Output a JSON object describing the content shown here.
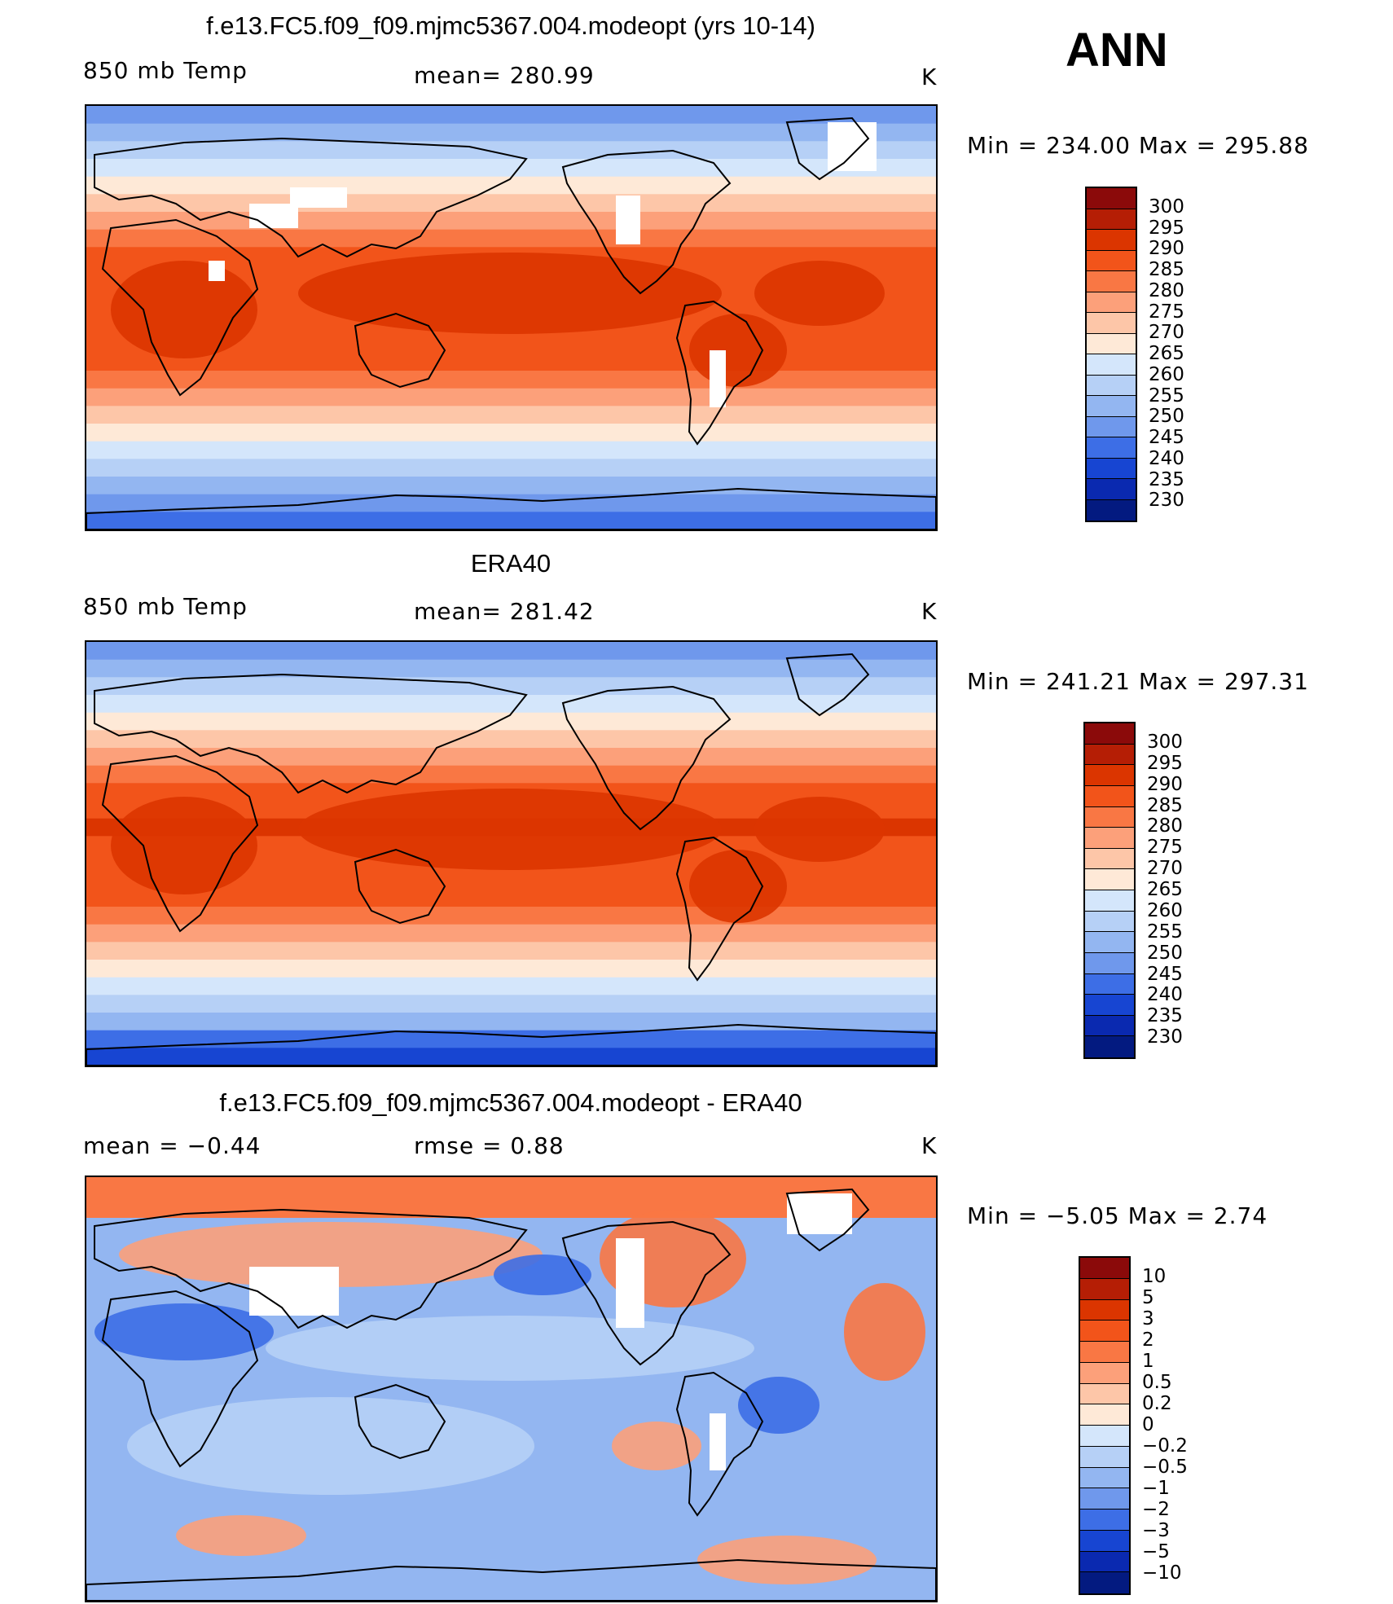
{
  "season": "ANN",
  "units": "K",
  "panels": [
    {
      "title": "f.e13.FC5.f09_f09.mjmc5367.004.modeopt (yrs 10-14)",
      "left_label": "850 mb Temp",
      "center_label": "mean=  280.99",
      "right_label": "K",
      "minmax": "Min  =  234.00  Max  =  295.88",
      "field": "model"
    },
    {
      "title": "ERA40",
      "left_label": "850 mb Temp",
      "center_label": "mean=  281.42",
      "right_label": "K",
      "minmax": "Min  =  241.21  Max  =  297.31",
      "field": "obs"
    },
    {
      "title": "f.e13.FC5.f09_f09.mjmc5367.004.modeopt - ERA40",
      "left_label": "mean  =    −0.44",
      "center_label": "rmse  =     0.88",
      "right_label": "K",
      "minmax": "Min  =    −5.05  Max  =     2.74",
      "field": "diff"
    }
  ],
  "colorbar_abs": {
    "labels": [
      "300",
      "295",
      "290",
      "285",
      "280",
      "275",
      "270",
      "265",
      "260",
      "255",
      "250",
      "245",
      "240",
      "235",
      "230"
    ],
    "colors": [
      "#8b0a0a",
      "#b51e05",
      "#db3500",
      "#f2541a",
      "#f97744",
      "#fca07a",
      "#fdc6a8",
      "#fee9d7",
      "#d4e6fb",
      "#b6d0f6",
      "#93b6f1",
      "#6f98ec",
      "#3d6ee6",
      "#1745d2",
      "#0a29b0",
      "#031a80"
    ]
  },
  "colorbar_diff": {
    "labels": [
      "10",
      "5",
      "3",
      "2",
      "1",
      "0.5",
      "0.2",
      "0",
      "−0.2",
      "−0.5",
      "−1",
      "−2",
      "−3",
      "−5",
      "−10"
    ],
    "colors": [
      "#8b0a0a",
      "#b51e05",
      "#db3500",
      "#f2541a",
      "#f97744",
      "#fca07a",
      "#fdc6a8",
      "#fee9d7",
      "#d4e6fb",
      "#b6d0f6",
      "#93b6f1",
      "#6f98ec",
      "#3d6ee6",
      "#1745d2",
      "#0a29b0",
      "#031a80"
    ]
  }
}
